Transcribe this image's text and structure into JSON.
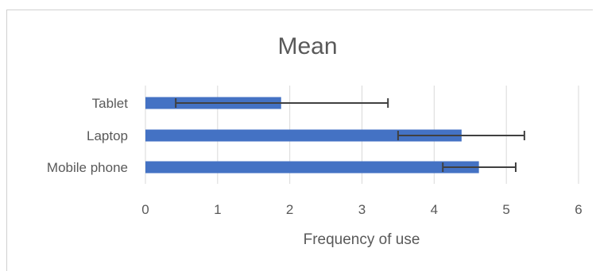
{
  "chart_data": {
    "type": "bar",
    "orientation": "horizontal",
    "title": "Mean",
    "xlabel": "Frequency of use",
    "ylabel": "",
    "categories": [
      "Tablet",
      "Laptop",
      "Mobile phone"
    ],
    "values": [
      1.88,
      4.38,
      4.62
    ],
    "error_low": [
      0.42,
      3.5,
      4.12
    ],
    "error_high": [
      3.36,
      5.25,
      5.13
    ],
    "xlim": [
      0,
      6
    ],
    "xticks": [
      "0",
      "1",
      "2",
      "3",
      "4",
      "5",
      "6"
    ],
    "grid": "vertical",
    "legend": "none",
    "colors": {
      "bar": "#4472c4",
      "error": "#404040",
      "grid": "#d9d9d9",
      "text": "#595959"
    }
  }
}
